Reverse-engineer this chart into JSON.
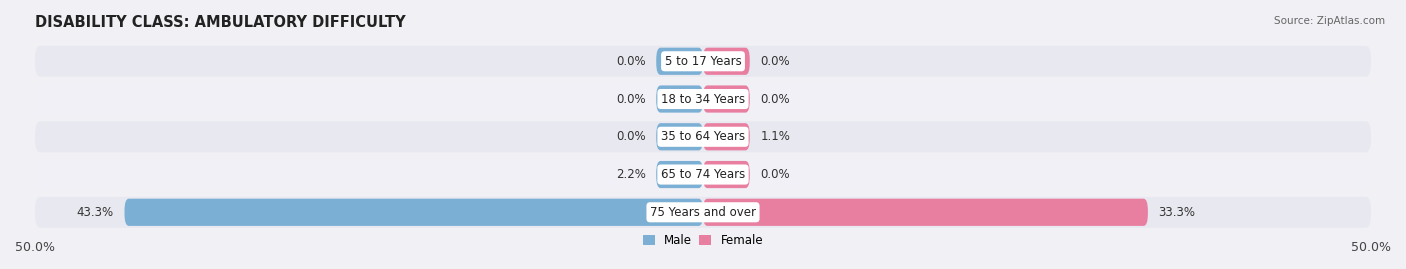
{
  "title": "DISABILITY CLASS: AMBULATORY DIFFICULTY",
  "source": "Source: ZipAtlas.com",
  "categories": [
    "5 to 17 Years",
    "18 to 34 Years",
    "35 to 64 Years",
    "65 to 74 Years",
    "75 Years and over"
  ],
  "male_values": [
    0.0,
    0.0,
    0.0,
    2.2,
    43.3
  ],
  "female_values": [
    0.0,
    0.0,
    1.1,
    0.0,
    33.3
  ],
  "male_color": "#7bafd4",
  "female_color": "#e87fa0",
  "bar_bg_color": "#dddde8",
  "bar_bg_color_alt": "#e4e4ed",
  "axis_limit": 50.0,
  "bar_height": 0.72,
  "zero_stub": 3.5,
  "title_fontsize": 10.5,
  "label_fontsize": 8.5,
  "cat_fontsize": 8.5,
  "axis_label_fontsize": 9,
  "background_color": "#f0f0f5",
  "row_bg_even": "#e8e8f0",
  "row_bg_odd": "#f0f0f6"
}
